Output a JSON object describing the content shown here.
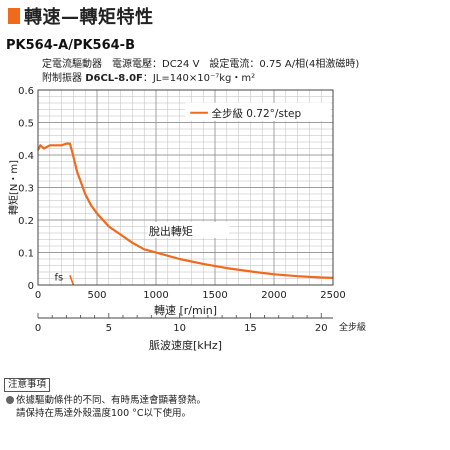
{
  "header": {
    "title": "轉速—轉矩特性",
    "model": "PK564-A/PK564-B",
    "condition_line1": "定電流驅動器　電源電壓：DC24 V　設定電流：0.75 A/相(4相激磁時)",
    "damper_label": "附制振器 ",
    "damper_model": "D6CL-8.0F",
    "damper_inertia": "：JL=140×10⁻⁷kg・m²"
  },
  "note": {
    "heading": "注意事項",
    "line1": "依據驅動條件的不同、有時馬達會顯著發熱。",
    "line2": "請保持在馬達外殼溫度100 °C以下使用。"
  },
  "colors": {
    "accent": "#f06a1c",
    "curve": "#f06a1c",
    "grid": "#bbbbbb",
    "axis": "#444444"
  },
  "chart_data": {
    "type": "line",
    "ylabel": "轉矩[N・m]",
    "xlabel": "轉速 [r/min]",
    "x2label": "脈波速度[kHz]",
    "x2unit": "全步級",
    "xlim": [
      0,
      2500
    ],
    "ylim": [
      0,
      0.6
    ],
    "x2lim": [
      0,
      20.83
    ],
    "xticks": [
      0,
      500,
      1000,
      1500,
      2000,
      2500
    ],
    "yticks": [
      0,
      0.1,
      0.2,
      0.3,
      0.4,
      0.5,
      0.6
    ],
    "x2ticks": [
      0,
      5,
      10,
      15,
      20
    ],
    "grid": true,
    "legend_label": "全步級 0.72°/step",
    "curve_annotation": "脫出轉矩",
    "fs_label": "fs",
    "series": [
      {
        "name": "全步級 0.72°/step",
        "x": [
          0,
          20,
          50,
          100,
          150,
          200,
          240,
          270,
          290,
          310,
          330,
          360,
          400,
          450,
          500,
          550,
          600,
          700,
          800,
          900,
          1000,
          1200,
          1400,
          1600,
          1800,
          2000,
          2200,
          2400,
          2500
        ],
        "y": [
          0.415,
          0.43,
          0.42,
          0.43,
          0.43,
          0.43,
          0.435,
          0.435,
          0.41,
          0.38,
          0.35,
          0.32,
          0.28,
          0.245,
          0.22,
          0.2,
          0.18,
          0.155,
          0.13,
          0.11,
          0.1,
          0.08,
          0.065,
          0.052,
          0.042,
          0.033,
          0.027,
          0.023,
          0.022
        ]
      },
      {
        "name": "fs",
        "x": [
          270,
          300
        ],
        "y": [
          0.03,
          0.0
        ]
      }
    ]
  }
}
